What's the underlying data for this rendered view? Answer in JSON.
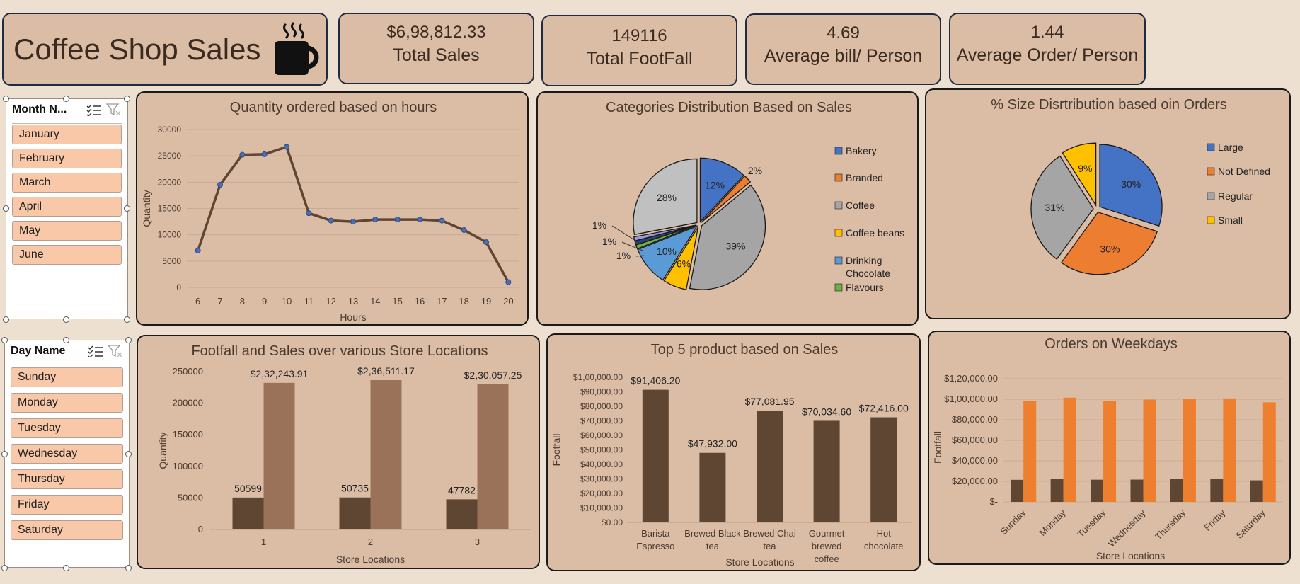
{
  "header": {
    "title": "Coffee Shop Sales",
    "title_icon": "coffee-mug-icon",
    "kpis": [
      {
        "value": "$6,98,812.33",
        "label": "Total Sales"
      },
      {
        "value": "149116",
        "label": "Total FootFall"
      },
      {
        "value": "4.69",
        "label": "Average bill/ Person"
      },
      {
        "value": "1.44",
        "label": "Average Order/ Person"
      }
    ]
  },
  "slicers": {
    "month": {
      "header": "Month N...",
      "items": [
        "January",
        "February",
        "March",
        "April",
        "May",
        "June"
      ]
    },
    "day": {
      "header": "Day Name",
      "items": [
        "Sunday",
        "Monday",
        "Tuesday",
        "Wednesday",
        "Thursday",
        "Friday",
        "Saturday"
      ]
    }
  },
  "colors": {
    "dark_brown": "#5e4632",
    "light_brown": "#9a7259",
    "orange": "#ee7f2f",
    "panel": "#dbbda6"
  },
  "chart_data": [
    {
      "type": "line",
      "title": "Quantity ordered based on hours",
      "xlabel": "Hours",
      "ylabel": "Quantity",
      "x": [
        6,
        7,
        8,
        9,
        10,
        11,
        12,
        13,
        14,
        15,
        16,
        17,
        18,
        19,
        20
      ],
      "y": [
        7000,
        19500,
        25200,
        25300,
        26700,
        14100,
        12700,
        12500,
        12900,
        12900,
        12900,
        12700,
        10900,
        8600,
        1000
      ],
      "ylim": [
        0,
        30000
      ],
      "yticks": [
        0,
        5000,
        10000,
        15000,
        20000,
        25000,
        30000
      ],
      "grid": true
    },
    {
      "type": "pie",
      "title": "Categories Distribution Based on Sales",
      "legend": [
        "Bakery",
        "Branded",
        "Coffee",
        "Coffee beans",
        "Drinking Chocolate",
        "Flavours"
      ],
      "legend_position": "right",
      "slices": [
        {
          "label": "12%",
          "value": 12,
          "color": "#4472c4"
        },
        {
          "label": "2%",
          "value": 2,
          "color": "#ed7d31"
        },
        {
          "label": "39%",
          "value": 39,
          "color": "#a5a5a5"
        },
        {
          "label": "6%",
          "value": 6,
          "color": "#ffc000"
        },
        {
          "label": "10%",
          "value": 10,
          "color": "#5b9bd5"
        },
        {
          "label": "1%",
          "value": 1,
          "color": "#70ad47"
        },
        {
          "label": "1%",
          "value": 1,
          "color": "#264478"
        },
        {
          "label": "1%",
          "value": 1,
          "color": "#9e9ad8"
        },
        {
          "label": "28%",
          "value": 28,
          "color": "#c0c0c0"
        }
      ],
      "legend_colors": [
        "#4472c4",
        "#ed7d31",
        "#a5a5a5",
        "#ffc000",
        "#5b9bd5",
        "#70ad47"
      ]
    },
    {
      "type": "pie",
      "title": "%  Size Disrtribution based oin Orders",
      "legend": [
        "Large",
        "Not Defined",
        "Regular",
        "Small"
      ],
      "legend_position": "right",
      "slices": [
        {
          "label": "30%",
          "value": 30,
          "color": "#4472c4"
        },
        {
          "label": "30%",
          "value": 30,
          "color": "#ed7d31"
        },
        {
          "label": "31%",
          "value": 31,
          "color": "#a5a5a5"
        },
        {
          "label": "9%",
          "value": 9,
          "color": "#ffc000"
        }
      ]
    },
    {
      "type": "bar",
      "title": "Footfall and Sales over various Store Locations",
      "xlabel": "Store Locations",
      "ylabel": "Quantity",
      "categories": [
        "1",
        "2",
        "3"
      ],
      "series": [
        {
          "values": [
            50599,
            50735,
            47782
          ],
          "labels": [
            "50599",
            "50735",
            "47782"
          ]
        },
        {
          "values": [
            232243.91,
            236511.17,
            230057.25
          ],
          "labels": [
            "$2,32,243.91",
            "$2,36,511.17",
            "$2,30,057.25"
          ]
        }
      ],
      "ylim": [
        0,
        250000
      ],
      "yticks": [
        0,
        50000,
        100000,
        150000,
        200000,
        250000
      ]
    },
    {
      "type": "bar",
      "title": "Top 5 product based on Sales",
      "xlabel": "Store Locations",
      "ylabel": "Footfall",
      "categories": [
        "Barista Espresso",
        "Brewed Black tea",
        "Brewed Chai tea",
        "Gourmet brewed coffee",
        "Hot chocolate"
      ],
      "values": [
        91406.2,
        47932.0,
        77081.95,
        70034.6,
        72416.0
      ],
      "value_labels": [
        "$91,406.20",
        "$47,932.00",
        "$77,081.95",
        "$70,034.60",
        "$72,416.00"
      ],
      "ylim": [
        0,
        100000
      ],
      "ytick_labels": [
        "$0.00",
        "$10,000.00",
        "$20,000.00",
        "$30,000.00",
        "$40,000.00",
        "$50,000.00",
        "$60,000.00",
        "$70,000.00",
        "$80,000.00",
        "$90,000.00",
        "$1,00,000.00"
      ]
    },
    {
      "type": "bar",
      "title": "Orders on Weekdays",
      "xlabel": "Store Locations",
      "ylabel": "Footfall",
      "categories": [
        "Sunday",
        "Monday",
        "Tuesday",
        "Wednesday",
        "Thursday",
        "Friday",
        "Saturday"
      ],
      "series": [
        {
          "values": [
            21500,
            22300,
            21600,
            21700,
            22200,
            22400,
            21000
          ]
        },
        {
          "values": [
            98000,
            101500,
            98600,
            99600,
            100200,
            100800,
            97000
          ]
        }
      ],
      "ylim": [
        0,
        120000
      ],
      "ytick_labels": [
        "$-",
        "$20,000.00",
        "$40,000.00",
        "$60,000.00",
        "$80,000.00",
        "$1,00,000.00",
        "$1,20,000.00"
      ]
    }
  ]
}
